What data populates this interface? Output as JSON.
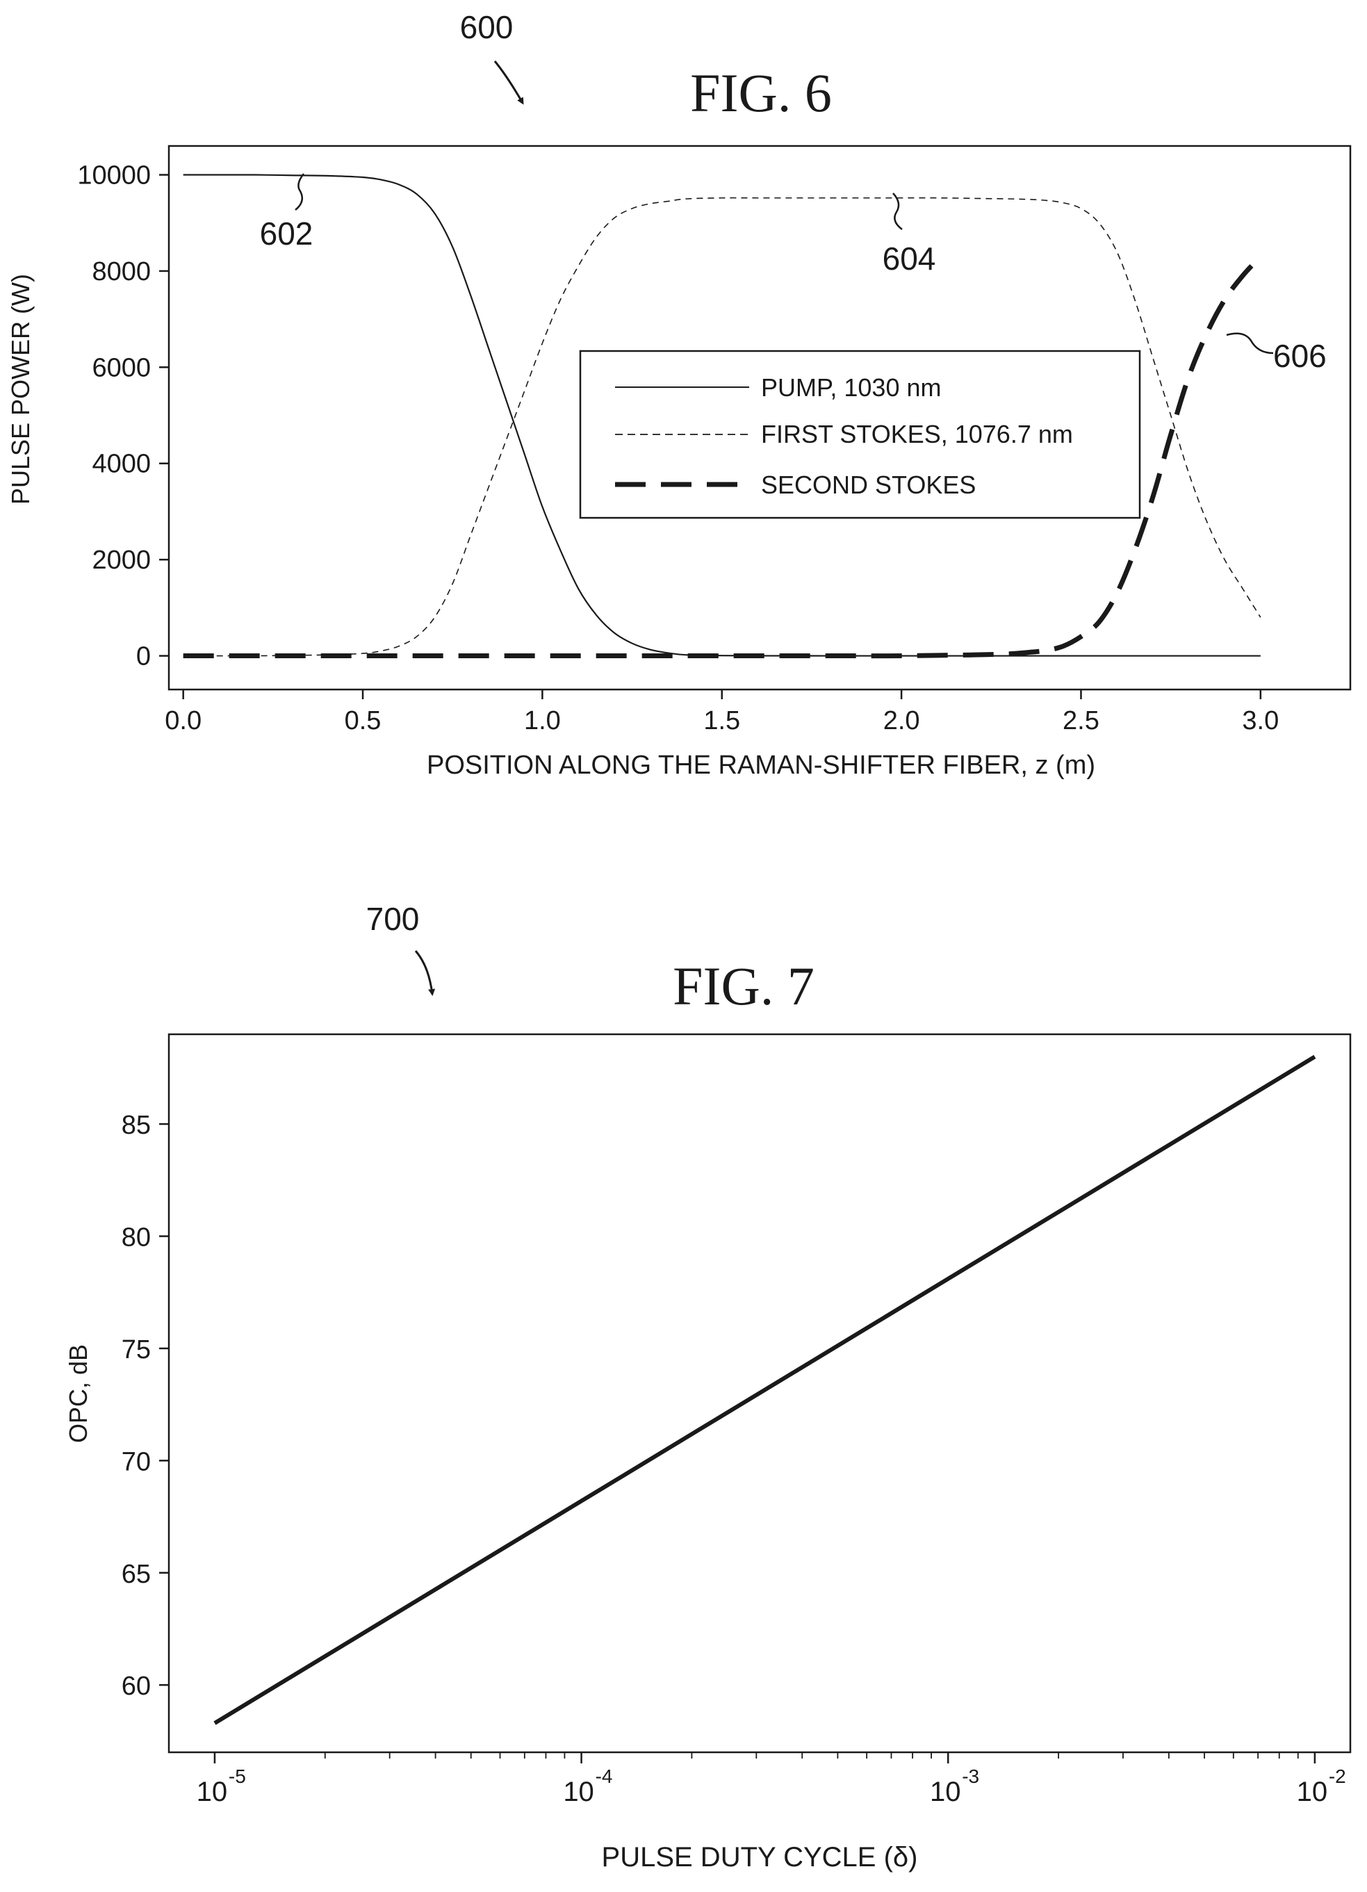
{
  "chart_data": [
    {
      "type": "line",
      "ref_number": "600",
      "title": "FIG. 6",
      "xlabel": "POSITION ALONG THE RAMAN-SHIFTER FIBER, z (m)",
      "ylabel": "PULSE POWER (W)",
      "xlim": [
        -0.04,
        3.25
      ],
      "ylim": [
        -700,
        10600
      ],
      "xticks": [
        0.0,
        0.5,
        1.0,
        1.5,
        2.0,
        2.5,
        3.0
      ],
      "xtick_labels": [
        "0.0",
        "0.5",
        "1.0",
        "1.5",
        "2.0",
        "2.5",
        "3.0"
      ],
      "yticks": [
        0,
        2000,
        4000,
        6000,
        8000,
        10000
      ],
      "ytick_labels": [
        "0",
        "2000",
        "4000",
        "6000",
        "8000",
        "10000"
      ],
      "grid": false,
      "legend_position": "center-right",
      "x": [
        0.0,
        0.1,
        0.2,
        0.3,
        0.4,
        0.5,
        0.55,
        0.6,
        0.65,
        0.7,
        0.75,
        0.8,
        0.85,
        0.9,
        0.95,
        1.0,
        1.05,
        1.1,
        1.15,
        1.2,
        1.25,
        1.3,
        1.35,
        1.4,
        1.5,
        1.6,
        1.7,
        1.8,
        1.9,
        2.0,
        2.1,
        2.2,
        2.3,
        2.35,
        2.4,
        2.45,
        2.5,
        2.55,
        2.6,
        2.65,
        2.7,
        2.75,
        2.8,
        2.85,
        2.9,
        2.95,
        3.0
      ],
      "series": [
        {
          "name": "PUMP, 1030 nm",
          "ref_number": "602",
          "style": "solid-thin",
          "values": [
            10000,
            10000,
            10000,
            9990,
            9980,
            9950,
            9900,
            9800,
            9600,
            9200,
            8500,
            7500,
            6400,
            5300,
            4200,
            3100,
            2200,
            1400,
            850,
            480,
            260,
            130,
            60,
            20,
            5,
            2,
            1,
            0,
            0,
            0,
            0,
            0,
            0,
            0,
            0,
            0,
            0,
            0,
            0,
            0,
            0,
            0,
            0,
            0,
            0,
            0,
            0
          ]
        },
        {
          "name": "FIRST STOKES, 1076.7 nm",
          "ref_number": "604",
          "style": "dashed-thin",
          "values": [
            0,
            0,
            0,
            10,
            20,
            50,
            100,
            200,
            400,
            800,
            1500,
            2500,
            3500,
            4500,
            5500,
            6500,
            7400,
            8100,
            8700,
            9100,
            9300,
            9400,
            9450,
            9500,
            9520,
            9520,
            9520,
            9520,
            9520,
            9520,
            9520,
            9510,
            9500,
            9490,
            9470,
            9420,
            9300,
            9000,
            8400,
            7400,
            6200,
            5000,
            3800,
            2800,
            2000,
            1400,
            800
          ]
        },
        {
          "name": "SECOND STOKES",
          "ref_number": "606",
          "style": "dashed-thick",
          "values": [
            0,
            0,
            0,
            0,
            0,
            0,
            0,
            0,
            0,
            0,
            0,
            0,
            0,
            0,
            0,
            0,
            0,
            0,
            0,
            0,
            0,
            0,
            0,
            0,
            0,
            0,
            0,
            0,
            0,
            0,
            10,
            20,
            40,
            70,
            110,
            200,
            400,
            700,
            1300,
            2200,
            3300,
            4600,
            5800,
            6700,
            7400,
            7900,
            8300
          ]
        }
      ],
      "annotations": [
        "602",
        "604",
        "606"
      ]
    },
    {
      "type": "line",
      "ref_number": "700",
      "title": "FIG. 7",
      "xlabel": "PULSE DUTY CYCLE (δ)",
      "ylabel": "OPC, dB",
      "xscale": "log",
      "xlim": [
        7.5e-06,
        0.0125
      ],
      "ylim": [
        57,
        89
      ],
      "xticks": [
        1e-05,
        0.0001,
        0.001,
        0.01
      ],
      "xtick_labels": [
        {
          "base": "10",
          "exp": "-5"
        },
        {
          "base": "10",
          "exp": "-4"
        },
        {
          "base": "10",
          "exp": "-3"
        },
        {
          "base": "10",
          "exp": "-2"
        }
      ],
      "yticks": [
        60,
        65,
        70,
        75,
        80,
        85
      ],
      "ytick_labels": [
        "60",
        "65",
        "70",
        "75",
        "80",
        "85"
      ],
      "grid": false,
      "series": [
        {
          "style": "solid-thick",
          "x": [
            1e-05,
            0.0001,
            0.001,
            0.01
          ],
          "values": [
            58.3,
            68.2,
            78.1,
            88.0
          ]
        }
      ]
    }
  ]
}
